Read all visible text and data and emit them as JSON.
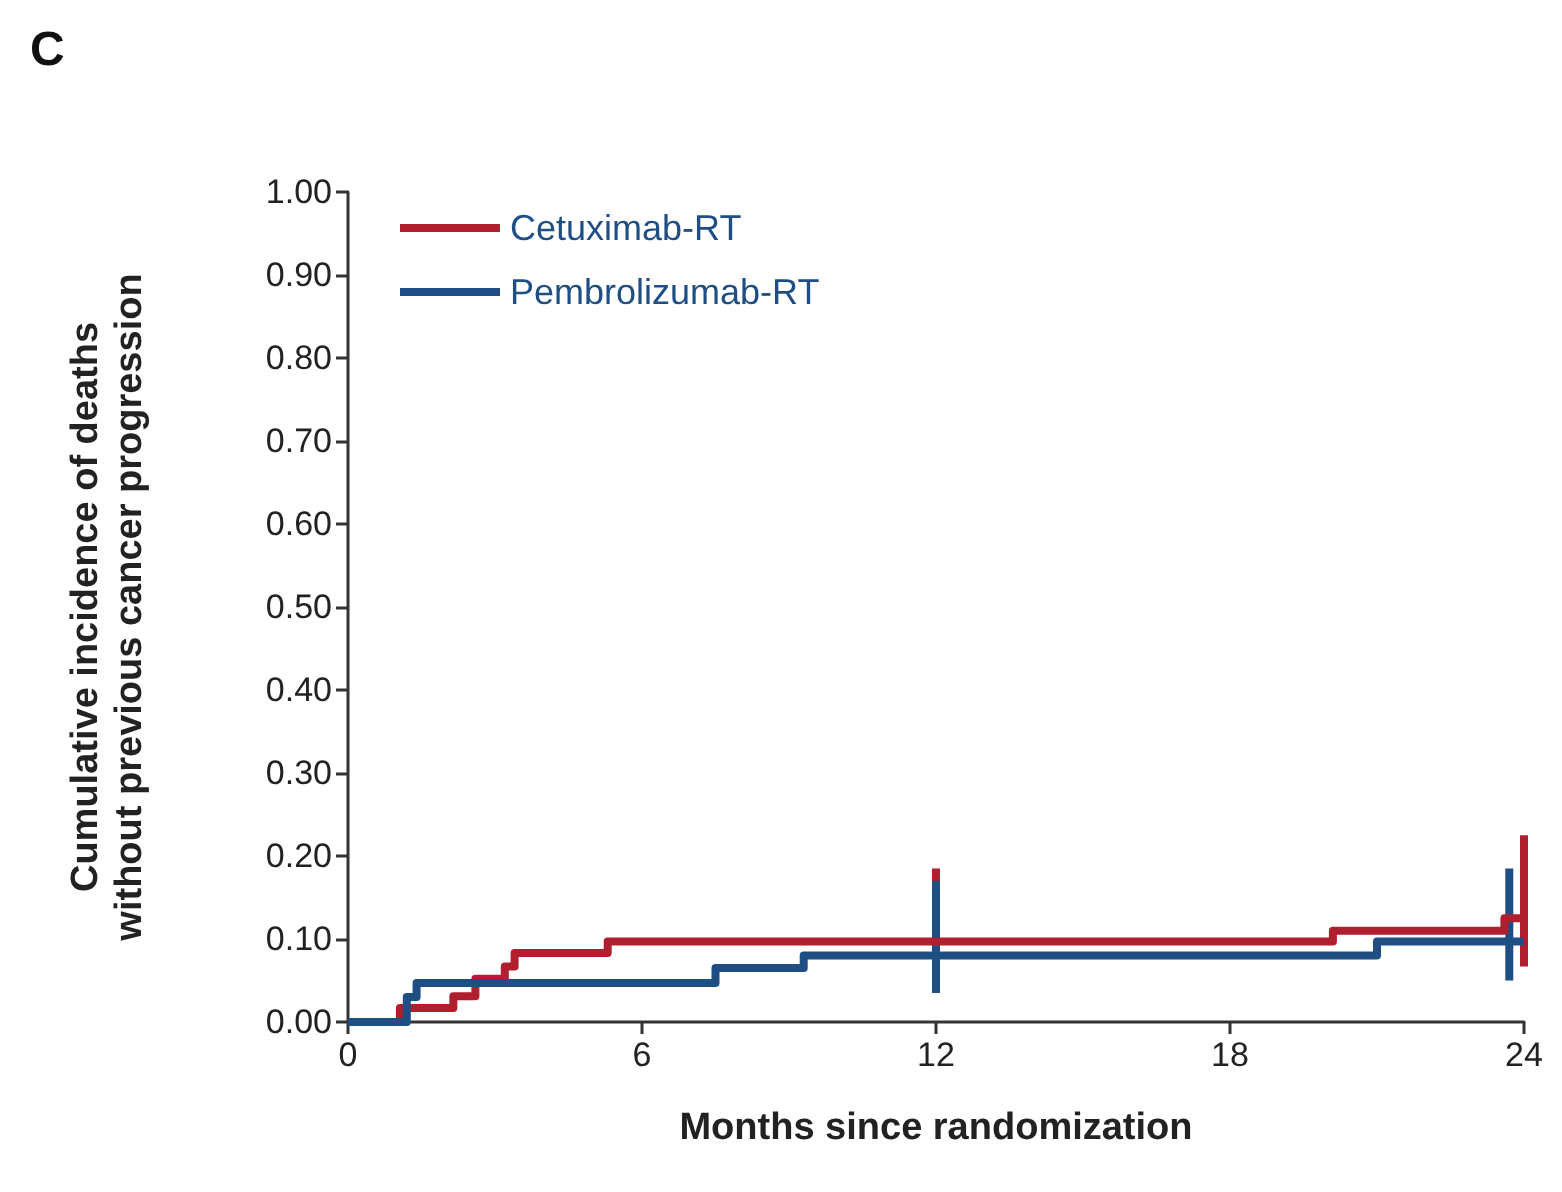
{
  "chart_data": {
    "type": "step",
    "title": "C",
    "xlabel": "Months since randomization",
    "ylabel": "Cumulative incidence of deaths\nwithout previous cancer progression",
    "xlim": [
      0,
      24
    ],
    "xticks": [
      0,
      6,
      12,
      18,
      24
    ],
    "ylim": [
      0,
      1
    ],
    "yticks": [
      {
        "value": 0,
        "label": "0.00"
      },
      {
        "value": 0.1,
        "label": "0.10"
      },
      {
        "value": 0.2,
        "label": "0.20"
      },
      {
        "value": 0.3,
        "label": "0.30"
      },
      {
        "value": 0.4,
        "label": "0.40"
      },
      {
        "value": 0.5,
        "label": "0.50"
      },
      {
        "value": 0.6,
        "label": "0.60"
      },
      {
        "value": 0.7,
        "label": "0.70"
      },
      {
        "value": 0.8,
        "label": "0.80"
      },
      {
        "value": 0.9,
        "label": "0.90"
      },
      {
        "value": 1,
        "label": "1.00"
      }
    ],
    "grid": false,
    "legend": "top left",
    "marker": "none",
    "line_style": "solid",
    "series": [
      {
        "name": "Cetuximab-RT",
        "color": "#b01f2e",
        "x": [
          0,
          1.06,
          2.15,
          2.6,
          3.2,
          3.4,
          5.3,
          12,
          20.1,
          23.6,
          24
        ],
        "values": [
          0,
          0.017,
          0.031,
          0.052,
          0.067,
          0.083,
          0.097,
          0.097,
          0.11,
          0.125,
          0.125
        ],
        "errors": [
          null,
          null,
          null,
          null,
          null,
          null,
          null,
          [
            0.035,
            0.185
          ],
          null,
          null,
          [
            0.067,
            0.225
          ]
        ]
      },
      {
        "name": "Pembrolizumab-RT",
        "color": "#1f4e85",
        "x": [
          0,
          1.2,
          1.4,
          7.5,
          9.3,
          12,
          21.0,
          23.7,
          24
        ],
        "values": [
          0,
          0.03,
          0.047,
          0.065,
          0.08,
          0.08,
          0.097,
          0.097,
          0.097
        ],
        "errors": [
          null,
          null,
          null,
          null,
          null,
          [
            0.035,
            0.17
          ],
          null,
          [
            0.05,
            0.185
          ],
          null
        ]
      }
    ]
  }
}
